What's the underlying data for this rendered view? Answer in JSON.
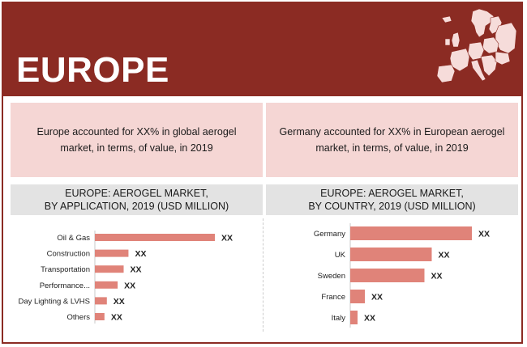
{
  "header": {
    "title": "EUROPE"
  },
  "facts": {
    "left": "Europe accounted for XX% in global aerogel market, in terms, of value, in 2019",
    "right": "Germany accounted for XX% in European aerogel market, in terms, of value, in 2019"
  },
  "colors": {
    "header": "#8b2b23",
    "fact_bg": "#f5d6d4",
    "title_bg": "#e3e3e3",
    "bar": "#e08379"
  },
  "chart_data": [
    {
      "type": "bar",
      "orientation": "horizontal",
      "title_line1": "EUROPE: AEROGEL MARKET,",
      "title_line2": "BY APPLICATION, 2019 (USD MILLION)",
      "categories": [
        "Oil & Gas",
        "Construction",
        "Transportation",
        "Performance...",
        "Day Lighting & LVHS",
        "Others"
      ],
      "values": [
        100,
        28,
        24,
        19,
        10,
        8
      ],
      "data_labels": [
        "XX",
        "XX",
        "XX",
        "XX",
        "XX",
        "XX"
      ],
      "axis_labels_shown": false,
      "grid": false
    },
    {
      "type": "bar",
      "orientation": "horizontal",
      "title_line1": "EUROPE: AEROGEL MARKET,",
      "title_line2": "BY COUNTRY, 2019 (USD MILLION)",
      "categories": [
        "Germany",
        "UK",
        "Sweden",
        "France",
        "Italy"
      ],
      "values": [
        100,
        67,
        61,
        12,
        6
      ],
      "data_labels": [
        "XX",
        "XX",
        "XX",
        "XX",
        "XX"
      ],
      "axis_labels_shown": false,
      "grid": false
    }
  ]
}
